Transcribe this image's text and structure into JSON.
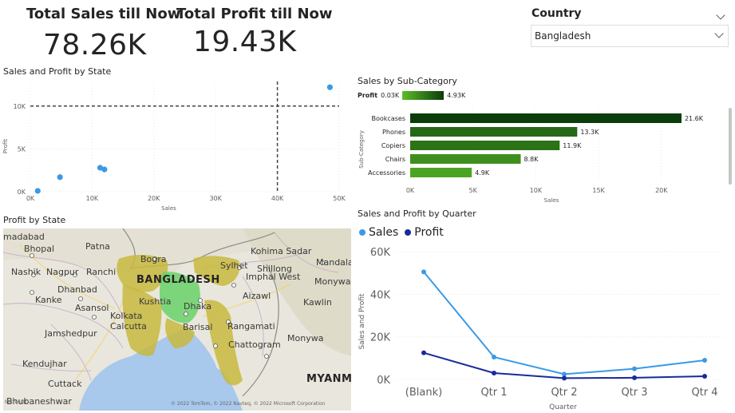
{
  "kpis": {
    "sales_title": "Total Sales till Now",
    "sales_value": "78.26K",
    "profit_title": "Total Profit till Now",
    "profit_value": "19.43K"
  },
  "slicer": {
    "title": "Country",
    "selected": "Bangladesh"
  },
  "scatter": {
    "title": "Sales and Profit by State",
    "xlabel": "Sales",
    "ylabel": "Profit",
    "x_ticks": [
      "0K",
      "10K",
      "20K",
      "30K",
      "40K",
      "50K"
    ],
    "y_ticks": [
      "0K",
      "5K",
      "10K"
    ]
  },
  "map_visual": {
    "title": "Profit by State",
    "labels": {
      "ahmedabad": "madabad",
      "bhopal": "Bhopal",
      "patna": "Patna",
      "bogra": "Bogra",
      "sylhet": "Sylhet",
      "kohima": "Kohima Sadar",
      "shillong": "Shillong",
      "mandalay": "Mandalay",
      "nashik": "Nashik",
      "nagpur": "Nagpur",
      "ranchi": "Ranchi",
      "bangladesh": "BANGLADESH",
      "imphal": "Imphal West",
      "monywa": "Monywa",
      "dhanbad": "Dhanbad",
      "kushtia": "Kushtia",
      "dhaka": "Dhaka",
      "aizawl": "Aizawl",
      "kanke": "Kanke",
      "asansol": "Asansol",
      "kawlin": "Kawlin",
      "kolkata": "Kolkata",
      "calcutta": "Calcutta",
      "barisal": "Barisal",
      "rangamati": "Rangamati",
      "jamshedpur": "Jamshedpur",
      "kendujhar": "Kendujhar",
      "chattogram": "Chattogram",
      "monywa2": "Monywa",
      "cuttack": "Cuttack",
      "myanmar": "MYANMA",
      "bhubaneshwar": "Bhubaneshwar",
      "microsoft": "Microsoft",
      "copyright": "© 2022 TomTom, © 2022 Navteq, © 2022 Microsoft Corporation"
    },
    "colors": {
      "land": "#eae7df",
      "water": "#a8c8ec",
      "region_low": "#c8b93e",
      "region_high": "#6ad16a"
    }
  },
  "bar": {
    "title": "Sales by Sub-Category",
    "legend_label": "Profit",
    "legend_min": "0.03K",
    "legend_max": "4.93K",
    "xlabel": "Sales",
    "ylabel": "Sub-Category",
    "x_ticks": [
      "0K",
      "5K",
      "10K",
      "15K",
      "20K"
    ],
    "value_labels": [
      "21.6K",
      "13.3K",
      "11.9K",
      "8.8K",
      "4.9K"
    ]
  },
  "line": {
    "title": "Sales and Profit by Quarter",
    "legend": [
      "Sales",
      "Profit"
    ],
    "xlabel": "Quarter",
    "ylabel": "Sales and Profit",
    "y_ticks": [
      "0K",
      "20K",
      "40K",
      "60K"
    ],
    "colors": {
      "sales": "#3a9ae6",
      "profit": "#1a2a99"
    }
  },
  "chart_data": [
    {
      "type": "scatter",
      "title": "Sales and Profit by State",
      "xlabel": "Sales",
      "ylabel": "Profit",
      "xlim": [
        0,
        50000
      ],
      "ylim": [
        0,
        12500
      ],
      "ref_lines": {
        "x": 40000,
        "y": 10000
      },
      "points": [
        {
          "x": 1200,
          "y": 100
        },
        {
          "x": 4800,
          "y": 1700
        },
        {
          "x": 11300,
          "y": 2800
        },
        {
          "x": 12000,
          "y": 2600
        },
        {
          "x": 48500,
          "y": 12200
        }
      ],
      "color": "#3a9ae6"
    },
    {
      "type": "bar",
      "orientation": "horizontal",
      "title": "Sales by Sub-Category",
      "categories": [
        "Bookcases",
        "Phones",
        "Copiers",
        "Chairs",
        "Accessories"
      ],
      "values": [
        21600,
        13300,
        11900,
        8800,
        4900
      ],
      "color_values": [
        4930,
        3300,
        2900,
        1800,
        1000
      ],
      "xlim": [
        0,
        23000
      ],
      "xlabel": "Sales",
      "ylabel": "Sub-Category",
      "legend_placement": "top-left"
    },
    {
      "type": "line",
      "title": "Sales and Profit by Quarter",
      "categories": [
        "(Blank)",
        "Qtr 1",
        "Qtr 2",
        "Qtr 3",
        "Qtr 4"
      ],
      "series": [
        {
          "name": "Sales",
          "values": [
            50500,
            10500,
            2500,
            5000,
            9000
          ]
        },
        {
          "name": "Profit",
          "values": [
            12500,
            3000,
            600,
            800,
            1500
          ]
        }
      ],
      "ylim": [
        0,
        62000
      ],
      "xlabel": "Quarter",
      "ylabel": "Sales and Profit",
      "legend_placement": "top-left"
    }
  ]
}
